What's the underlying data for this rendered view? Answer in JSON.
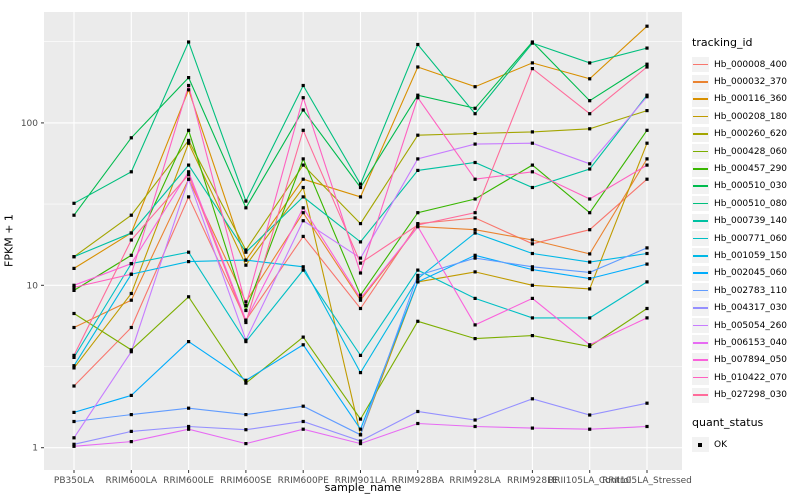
{
  "chart_data": {
    "type": "line",
    "title": "",
    "xlabel": "sample_name",
    "ylabel": "FPKM + 1",
    "y_scale": "log10",
    "y_tick_labels": [
      "1",
      "10",
      "100"
    ],
    "y_ticks": [
      1,
      10,
      100
    ],
    "y_minor_breaks": [
      3.1623,
      31.623,
      316.23
    ],
    "ylim": [
      0.73,
      470
    ],
    "grid": true,
    "legend_position": "right",
    "categories": [
      "PB350LA",
      "RRIM600LA",
      "RRIM600LE",
      "RRIM600SE",
      "RRIM600PE",
      "RRIM901LA",
      "RRIM928BA",
      "RRIM928LA",
      "RRIM928LE",
      "RRII105LA_Control",
      "RRII105LA_Stressed"
    ],
    "series": [
      {
        "name": "Hb_000008_400",
        "color": "#F8766D",
        "values": [
          2.4,
          5.5,
          35,
          6.1,
          20,
          7.2,
          24,
          26,
          18,
          22,
          45
        ]
      },
      {
        "name": "Hb_000032_370",
        "color": "#EA8331",
        "values": [
          5.5,
          8.1,
          45,
          7.9,
          28,
          8.1,
          23,
          22,
          19,
          15.6,
          60
        ]
      },
      {
        "name": "Hb_000116_360",
        "color": "#D89000",
        "values": [
          12.7,
          21,
          160,
          14.3,
          45,
          35,
          221,
          167,
          234,
          187,
          394
        ]
      },
      {
        "name": "Hb_000208_180",
        "color": "#C09B00",
        "values": [
          3.1,
          8.9,
          75,
          13.3,
          40,
          1.2,
          10.5,
          12.1,
          10,
          9.5,
          75
        ]
      },
      {
        "name": "Hb_000260_620",
        "color": "#A3A500",
        "values": [
          15,
          27,
          78,
          16.5,
          55,
          24,
          84,
          86,
          88,
          92,
          119
        ]
      },
      {
        "name": "Hb_000428_060",
        "color": "#7CAE00",
        "values": [
          6.7,
          4,
          8.5,
          2.5,
          4.8,
          1.5,
          6,
          4.7,
          4.9,
          4.2,
          7.2
        ]
      },
      {
        "name": "Hb_000457_290",
        "color": "#39B600",
        "values": [
          9.3,
          15.3,
          90,
          7,
          60,
          8.7,
          28,
          34,
          55,
          28,
          90
        ]
      },
      {
        "name": "Hb_000510_030",
        "color": "#00BB4E",
        "values": [
          27,
          81,
          190,
          30,
          120,
          40,
          148,
          123,
          315,
          137,
          230
        ]
      },
      {
        "name": "Hb_000510_080",
        "color": "#00BF7D",
        "values": [
          32,
          50,
          315,
          33,
          170,
          42,
          304,
          114,
          310,
          234,
          289
        ]
      },
      {
        "name": "Hb_000739_140",
        "color": "#00C1A2",
        "values": [
          15,
          21,
          55,
          16,
          35,
          18.5,
          51,
          57,
          40,
          52,
          148
        ]
      },
      {
        "name": "Hb_000771_060",
        "color": "#00BFC4",
        "values": [
          3.6,
          13.6,
          16,
          4.5,
          12.4,
          3.7,
          12.4,
          8.3,
          6.3,
          6.3,
          10.5
        ]
      },
      {
        "name": "Hb_001059_150",
        "color": "#00B8E5",
        "values": [
          3.2,
          11.7,
          14,
          14.3,
          13,
          2.9,
          11,
          21,
          15.7,
          13.9,
          15.7
        ]
      },
      {
        "name": "Hb_002045_060",
        "color": "#00ACFC",
        "values": [
          1.65,
          2.1,
          4.5,
          2.6,
          4.3,
          1.3,
          10.5,
          15.3,
          12.5,
          11,
          13.5
        ]
      },
      {
        "name": "Hb_002783_110",
        "color": "#619CFF",
        "values": [
          1.45,
          1.6,
          1.75,
          1.6,
          1.8,
          1.2,
          11.5,
          14.7,
          13,
          12,
          17
        ]
      },
      {
        "name": "Hb_004317_030",
        "color": "#9590FF",
        "values": [
          1.05,
          1.26,
          1.35,
          1.29,
          1.45,
          1.1,
          1.67,
          1.48,
          2.0,
          1.59,
          1.88
        ]
      },
      {
        "name": "Hb_005054_260",
        "color": "#C77CFF",
        "values": [
          1.15,
          3.9,
          45,
          4.6,
          25,
          14.7,
          60,
          74,
          75,
          56,
          145
        ]
      },
      {
        "name": "Hb_006153_040",
        "color": "#E76BF3",
        "values": [
          1.02,
          1.09,
          1.3,
          1.06,
          1.3,
          1.06,
          1.41,
          1.35,
          1.32,
          1.3,
          1.35
        ]
      },
      {
        "name": "Hb_007894_050",
        "color": "#FA62DB",
        "values": [
          10,
          13.6,
          50,
          6.1,
          30,
          8.3,
          23,
          5.7,
          8.3,
          4.3,
          6.3
        ]
      },
      {
        "name": "Hb_010422_070",
        "color": "#FF61C0",
        "values": [
          9.7,
          11.7,
          170,
          7.5,
          143,
          11.9,
          143,
          45,
          50,
          34,
          55
        ]
      },
      {
        "name": "Hb_027298_030",
        "color": "#FF6B9A",
        "values": [
          3.7,
          19,
          48,
          5.9,
          90,
          13.7,
          23.5,
          28,
          216,
          114,
          221
        ]
      }
    ],
    "marker": {
      "shape": "square",
      "color": "#000000"
    },
    "legend": {
      "tracking_title": "tracking_id",
      "quant_title": "quant_status",
      "quant_items": [
        {
          "label": "OK",
          "marker": "black-square"
        }
      ]
    },
    "colors": {
      "panel_background": "#EBEBEB",
      "grid": "#FFFFFF",
      "tick_label": "#4D4D4D",
      "tick_mark": "#333333",
      "legend_key_background": "#F2F2F2"
    }
  }
}
